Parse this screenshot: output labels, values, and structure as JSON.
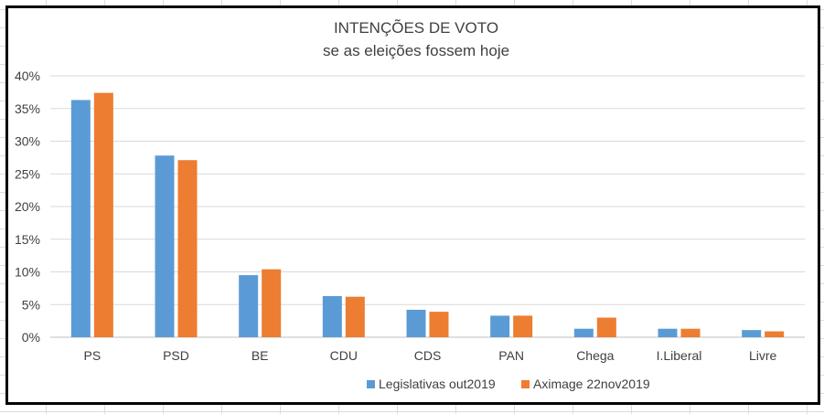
{
  "chart_data": {
    "type": "bar",
    "title": "INTENÇÕES DE VOTO",
    "subtitle": "se as eleições fossem hoje",
    "categories": [
      "PS",
      "PSD",
      "BE",
      "CDU",
      "CDS",
      "PAN",
      "Chega",
      "I.Liberal",
      "Livre"
    ],
    "series": [
      {
        "name": "Legislativas out2019",
        "color": "#5b9bd5",
        "values": [
          36.3,
          27.8,
          9.5,
          6.3,
          4.2,
          3.3,
          1.3,
          1.3,
          1.1
        ]
      },
      {
        "name": "Aximage 22nov2019",
        "color": "#ed7d31",
        "values": [
          37.4,
          27.1,
          10.4,
          6.2,
          3.9,
          3.3,
          3.0,
          1.3,
          0.9
        ]
      }
    ],
    "ylim": [
      0,
      40
    ],
    "yticks": [
      "0%",
      "5%",
      "10%",
      "15%",
      "20%",
      "25%",
      "30%",
      "35%",
      "40%"
    ],
    "grid": true,
    "legend_position": "bottom"
  }
}
